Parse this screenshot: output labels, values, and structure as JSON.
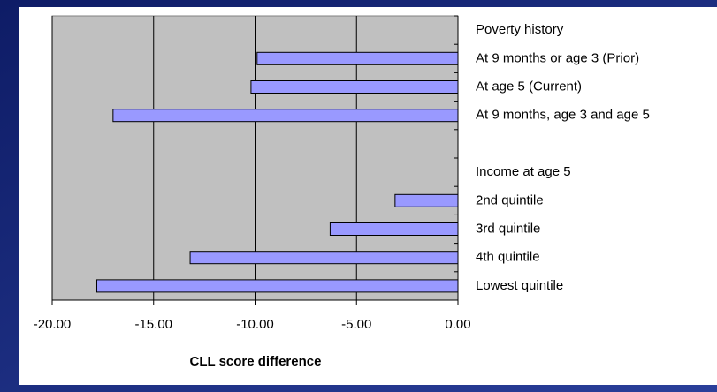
{
  "chart_data": {
    "type": "bar",
    "orientation": "horizontal",
    "categories": [
      "Poverty history",
      "At 9 months or age 3 (Prior)",
      "At age 5 (Current)",
      "At 9 months, age 3 and age 5",
      null,
      "Income at age 5",
      "2nd quintile",
      "3rd quintile",
      "4th quintile",
      "Lowest quintile"
    ],
    "values": [
      null,
      -9.9,
      -10.2,
      -17.0,
      null,
      null,
      -3.1,
      -6.3,
      -13.2,
      -17.8
    ],
    "color": "#9999ff",
    "xlabel": "CLL score difference",
    "xlim": [
      -20,
      0
    ],
    "xticks": [
      {
        "value": -20,
        "label": "-20.00"
      },
      {
        "value": -15,
        "label": "-15.00"
      },
      {
        "value": -10,
        "label": "-10.00"
      },
      {
        "value": -5,
        "label": "-5.00"
      },
      {
        "value": 0,
        "label": "0.00"
      }
    ],
    "grid": true
  }
}
